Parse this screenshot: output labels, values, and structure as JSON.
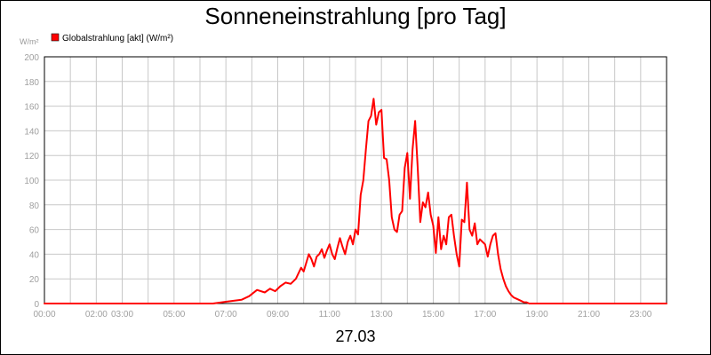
{
  "chart_data": {
    "type": "line",
    "title": "Sonneneinstrahlung [pro Tag]",
    "ylabel": "W/m²",
    "date_label": "27.03",
    "xlim": [
      0,
      24
    ],
    "ylim": [
      0,
      200
    ],
    "y_ticks": [
      0,
      20,
      40,
      60,
      80,
      100,
      120,
      140,
      160,
      180,
      200
    ],
    "x_tick_labels": [
      {
        "t": 0,
        "label": "00:00"
      },
      {
        "t": 2,
        "label": "02:00"
      },
      {
        "t": 3,
        "label": "03:00"
      },
      {
        "t": 5,
        "label": "05:00"
      },
      {
        "t": 7,
        "label": "07:00"
      },
      {
        "t": 9,
        "label": "09:00"
      },
      {
        "t": 11,
        "label": "11:00"
      },
      {
        "t": 13,
        "label": "13:00"
      },
      {
        "t": 15,
        "label": "15:00"
      },
      {
        "t": 17,
        "label": "17:00"
      },
      {
        "t": 19,
        "label": "19:00"
      },
      {
        "t": 21,
        "label": "21:00"
      },
      {
        "t": 23,
        "label": "23:00"
      }
    ],
    "x_grid": [
      0,
      1,
      2,
      3,
      4,
      5,
      6,
      7,
      8,
      9,
      10,
      11,
      12,
      13,
      14,
      15,
      16,
      17,
      18,
      19,
      20,
      21,
      22,
      23,
      24
    ],
    "grid": true,
    "legend_position": "top-left",
    "series": [
      {
        "name": "Globalstrahlung [akt] (W/m²)",
        "color": "#ff0000",
        "x": [
          0,
          6.5,
          7.2,
          7.6,
          7.9,
          8.2,
          8.5,
          8.7,
          8.9,
          9.1,
          9.3,
          9.5,
          9.7,
          9.9,
          10.0,
          10.1,
          10.2,
          10.3,
          10.4,
          10.5,
          10.6,
          10.7,
          10.8,
          10.9,
          11.0,
          11.1,
          11.2,
          11.3,
          11.4,
          11.5,
          11.6,
          11.7,
          11.8,
          11.9,
          12.0,
          12.1,
          12.2,
          12.3,
          12.4,
          12.5,
          12.6,
          12.7,
          12.8,
          12.9,
          13.0,
          13.1,
          13.2,
          13.3,
          13.4,
          13.5,
          13.6,
          13.7,
          13.8,
          13.9,
          14.0,
          14.1,
          14.2,
          14.3,
          14.4,
          14.5,
          14.6,
          14.7,
          14.8,
          14.9,
          15.0,
          15.1,
          15.2,
          15.3,
          15.4,
          15.5,
          15.6,
          15.7,
          15.8,
          15.9,
          16.0,
          16.1,
          16.2,
          16.3,
          16.4,
          16.5,
          16.6,
          16.7,
          16.8,
          16.9,
          17.0,
          17.1,
          17.2,
          17.3,
          17.4,
          17.5,
          17.6,
          17.7,
          17.8,
          17.9,
          18.0,
          18.1,
          18.2,
          18.3,
          18.4,
          18.5,
          18.6,
          18.7,
          18.8,
          18.9,
          19.0,
          19.1,
          19.2,
          19.4,
          19.6,
          19.8,
          20.0,
          24
        ],
        "y": [
          0,
          0,
          2,
          3,
          6,
          11,
          9,
          12,
          10,
          14,
          17,
          16,
          20,
          29,
          26,
          33,
          40,
          36,
          30,
          38,
          40,
          44,
          37,
          43,
          48,
          40,
          36,
          45,
          53,
          46,
          40,
          50,
          55,
          48,
          60,
          56,
          88,
          100,
          125,
          148,
          152,
          166,
          145,
          155,
          157,
          118,
          117,
          100,
          70,
          60,
          58,
          72,
          75,
          110,
          122,
          85,
          125,
          148,
          110,
          66,
          82,
          78,
          90,
          72,
          63,
          41,
          70,
          44,
          55,
          48,
          70,
          72,
          55,
          40,
          30,
          68,
          66,
          98,
          60,
          55,
          65,
          48,
          52,
          50,
          48,
          38,
          48,
          55,
          57,
          40,
          28,
          20,
          14,
          10,
          7,
          5,
          4,
          3,
          2,
          1,
          1,
          0,
          0,
          0,
          0,
          0,
          0,
          0,
          0,
          0,
          0,
          0
        ]
      }
    ]
  }
}
